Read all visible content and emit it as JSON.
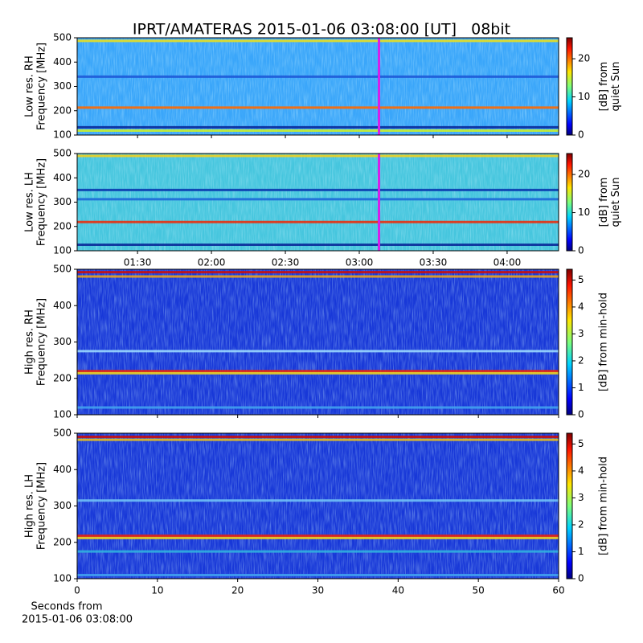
{
  "title": "IPRT/AMATERAS 2015-01-06 03:08:00 [UT]   08bit",
  "footer": [
    "Seconds from",
    "2015-01-06 03:08:00"
  ],
  "chart_data": [
    {
      "type": "spectrogram",
      "ylabel": [
        "Low res. RH",
        "Frequency [MHz]"
      ],
      "background": "#3aa6fa",
      "xlim": [
        65.5,
        260.9
      ],
      "xticks": [
        {
          "value": 90,
          "label": "01:30"
        },
        {
          "value": 120,
          "label": "02:00"
        },
        {
          "value": 150,
          "label": "02:30"
        },
        {
          "value": 180,
          "label": "03:00"
        },
        {
          "value": 210,
          "label": "03:30"
        },
        {
          "value": 240,
          "label": "04:00"
        }
      ],
      "xtick_labels": false,
      "ylim": [
        100,
        500
      ],
      "yticks": [
        100,
        200,
        300,
        400,
        500
      ],
      "marker_x": 188,
      "marker_color": "#d81ee8",
      "lines": [
        {
          "freq": 487,
          "color": "#e8e020"
        },
        {
          "freq": 213,
          "color": "#ff6a00"
        },
        {
          "freq": 118,
          "color": "#c8f030"
        },
        {
          "freq": 132,
          "color": "#0a2a9a"
        },
        {
          "freq": 340,
          "color": "#1e5ad8"
        }
      ],
      "colorbar": {
        "label": [
          "[dB] from",
          "quiet Sun"
        ],
        "colormap": "jet",
        "lim": [
          0,
          25.5
        ],
        "ticks": [
          0,
          10,
          20
        ]
      }
    },
    {
      "type": "spectrogram",
      "ylabel": [
        "Low res. LH",
        "Frequency [MHz]"
      ],
      "background": "#46c6de",
      "xlim": [
        65.5,
        260.9
      ],
      "xticks": [
        {
          "value": 90,
          "label": "01:30"
        },
        {
          "value": 120,
          "label": "02:00"
        },
        {
          "value": 150,
          "label": "02:30"
        },
        {
          "value": 180,
          "label": "03:00"
        },
        {
          "value": 210,
          "label": "03:30"
        },
        {
          "value": 240,
          "label": "04:00"
        }
      ],
      "xtick_labels": true,
      "ylim": [
        100,
        500
      ],
      "yticks": [
        100,
        200,
        300,
        400,
        500
      ],
      "marker_x": 188,
      "marker_color": "#d81ee8",
      "lines": [
        {
          "freq": 490,
          "color": "#f0d020"
        },
        {
          "freq": 218,
          "color": "#e83010"
        },
        {
          "freq": 350,
          "color": "#0a3ab0"
        },
        {
          "freq": 312,
          "color": "#1e6ad8"
        },
        {
          "freq": 125,
          "color": "#0a2a9a"
        }
      ],
      "colorbar": {
        "label": [
          "[dB] from",
          "quiet Sun"
        ],
        "colormap": "jet",
        "lim": [
          0,
          25.5
        ],
        "ticks": [
          0,
          10,
          20
        ]
      }
    },
    {
      "type": "spectrogram",
      "ylabel": [
        "High res. RH",
        "Frequency [MHz]"
      ],
      "background": "#1838d8",
      "xlim": [
        0,
        60
      ],
      "xticks": [
        0,
        10,
        20,
        30,
        40,
        50,
        60
      ],
      "xtick_labels": false,
      "ylim": [
        100,
        500
      ],
      "yticks": [
        100,
        200,
        300,
        400,
        500
      ],
      "lines": [
        {
          "freq": 492,
          "color": "#c81010"
        },
        {
          "freq": 480,
          "color": "#e8a020"
        },
        {
          "freq": 220,
          "color": "#e82010"
        },
        {
          "freq": 214,
          "color": "#f0d020"
        },
        {
          "freq": 275,
          "color": "#9ad8ff"
        },
        {
          "freq": 120,
          "color": "#40a0f0"
        }
      ],
      "colorbar": {
        "label": [
          "[dB] from min-hold"
        ],
        "colormap": "jet",
        "lim": [
          0,
          5.4
        ],
        "ticks": [
          0,
          1,
          2,
          3,
          4,
          5
        ]
      }
    },
    {
      "type": "spectrogram",
      "ylabel": [
        "High res. LH",
        "Frequency [MHz]"
      ],
      "background": "#1838d8",
      "xlim": [
        0,
        60
      ],
      "xticks": [
        0,
        10,
        20,
        30,
        40,
        50,
        60
      ],
      "xtick_labels": true,
      "ylim": [
        100,
        500
      ],
      "yticks": [
        100,
        200,
        300,
        400,
        500
      ],
      "lines": [
        {
          "freq": 490,
          "color": "#c81010"
        },
        {
          "freq": 482,
          "color": "#e8c020"
        },
        {
          "freq": 218,
          "color": "#e82010"
        },
        {
          "freq": 212,
          "color": "#f0d020"
        },
        {
          "freq": 175,
          "color": "#30b0e0"
        },
        {
          "freq": 315,
          "color": "#70c0f8"
        },
        {
          "freq": 110,
          "color": "#40a0f0"
        }
      ],
      "colorbar": {
        "label": [
          "[dB] from min-hold"
        ],
        "colormap": "jet",
        "lim": [
          0,
          5.4
        ],
        "ticks": [
          0,
          1,
          2,
          3,
          4,
          5
        ]
      }
    }
  ]
}
